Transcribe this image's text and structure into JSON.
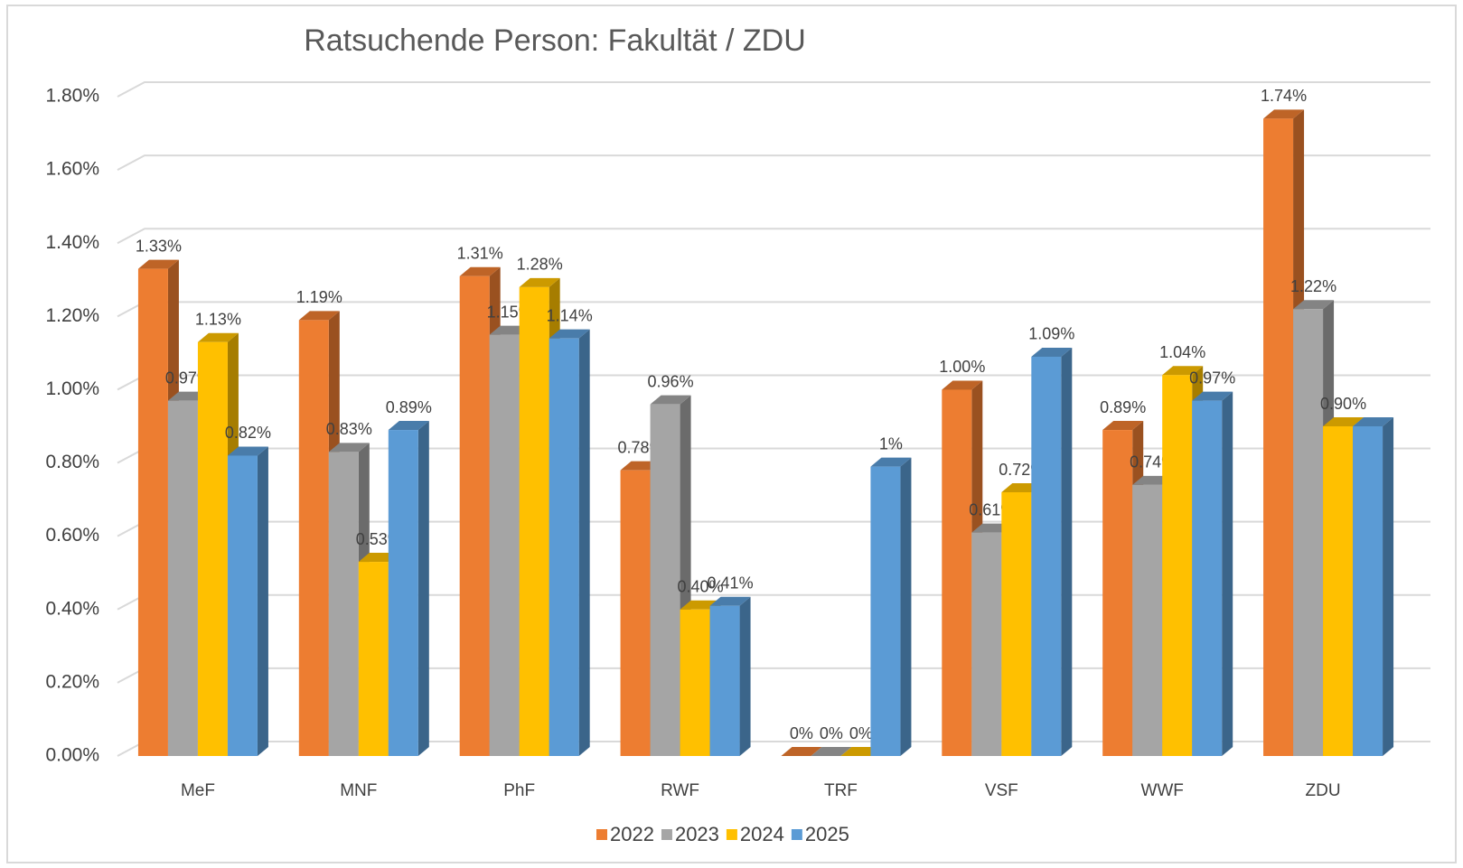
{
  "chart_data": {
    "type": "bar",
    "title": "Ratsuchende Person: Fakultät / ZDU",
    "categories": [
      "MeF",
      "MNF",
      "PhF",
      "RWF",
      "TRF",
      "VSF",
      "WWF",
      "ZDU"
    ],
    "series": [
      {
        "name": "2022",
        "color": "#ed7d31",
        "values": [
          1.33,
          1.19,
          1.31,
          0.78,
          0,
          1.0,
          0.89,
          1.74
        ],
        "value_labels": [
          "1.33%",
          "1.19%",
          "1.31%",
          "0.78%",
          "0%",
          "1.00%",
          "0.89%",
          "1.74%"
        ]
      },
      {
        "name": "2023",
        "color": "#a5a5a5",
        "values": [
          0.97,
          0.83,
          1.15,
          0.96,
          0,
          0.61,
          0.74,
          1.22
        ],
        "value_labels": [
          "0.97%",
          "0.83%",
          "1.15%",
          "0.96%",
          "0%",
          "0.61%",
          "0.74%",
          "1.22%"
        ]
      },
      {
        "name": "2024",
        "color": "#ffc000",
        "values": [
          1.13,
          0.53,
          1.28,
          0.4,
          0,
          0.72,
          1.04,
          0.9
        ],
        "value_labels": [
          "1.13%",
          "0.53%",
          "1.28%",
          "0.40%",
          "0%",
          "0.72%",
          "1.04%",
          "0.90%"
        ]
      },
      {
        "name": "2025",
        "color": "#5b9bd5",
        "values": [
          0.82,
          0.89,
          1.14,
          0.41,
          0.79,
          1.09,
          0.97,
          0.9
        ],
        "value_labels": [
          "0.82%",
          "0.89%",
          "1.14%",
          "0.41%",
          "1%",
          "1.09%",
          "0.97%",
          null
        ]
      }
    ],
    "ylim": [
      0,
      1.8
    ],
    "yticks": [
      {
        "value": 0,
        "label": "0.00%"
      },
      {
        "value": 0.2,
        "label": "0.20%"
      },
      {
        "value": 0.4,
        "label": "0.40%"
      },
      {
        "value": 0.6,
        "label": "0.60%"
      },
      {
        "value": 0.8,
        "label": "0.80%"
      },
      {
        "value": 1.0,
        "label": "1.00%"
      },
      {
        "value": 1.2,
        "label": "1.20%"
      },
      {
        "value": 1.4,
        "label": "1.40%"
      },
      {
        "value": 1.6,
        "label": "1.60%"
      },
      {
        "value": 1.8,
        "label": "1.80%"
      }
    ],
    "grid": true,
    "legend": "bottom"
  }
}
